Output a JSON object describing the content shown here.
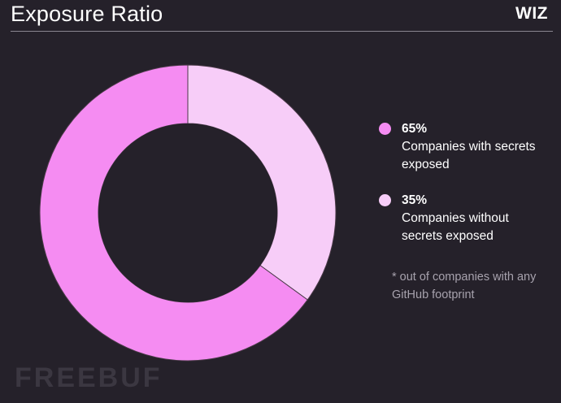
{
  "header": {
    "title": "Exposure Ratio",
    "brand": "WIZ"
  },
  "colors": {
    "background": "#25212a",
    "exposed": "#f58cf2",
    "not_exposed": "#f7cdf8",
    "divider": "#4a3a48"
  },
  "chart_data": {
    "type": "pie",
    "variant": "donut",
    "title": "Exposure Ratio",
    "categories": [
      "Companies with secrets exposed",
      "Companies without secrets exposed"
    ],
    "values": [
      65,
      35
    ],
    "units": "%",
    "legend": [
      {
        "value": "65%",
        "label": "Companies with secrets exposed"
      },
      {
        "value": "35%",
        "label": "Companies without secrets exposed"
      }
    ],
    "legend_position": "right",
    "footnote": "* out of companies with any GitHub footprint"
  },
  "watermark": "FREEBUF"
}
